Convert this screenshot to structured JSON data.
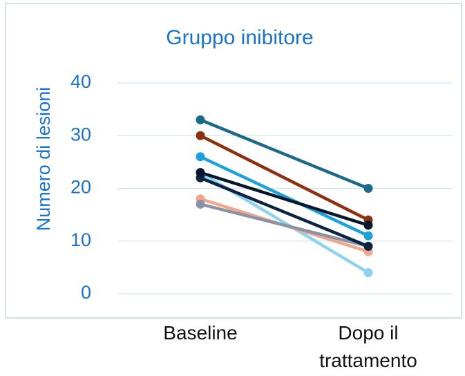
{
  "chart_data": {
    "type": "line",
    "title": "Gruppo inibitore",
    "y_label": "Numero di lesioni",
    "categories": [
      "Baseline",
      "Dopo il trattamento"
    ],
    "series": [
      {
        "color": "#1c6a87",
        "values": [
          33,
          20
        ]
      },
      {
        "color": "#8c300f",
        "values": [
          30,
          14
        ]
      },
      {
        "color": "#1ba1dc",
        "values": [
          26,
          11
        ]
      },
      {
        "color": "#8fd2ef",
        "values": [
          23,
          4
        ]
      },
      {
        "color": "#f2a68c",
        "values": [
          18,
          8
        ]
      },
      {
        "color": "#8a92a6",
        "values": [
          17,
          9
        ]
      },
      {
        "color": "#0d2342",
        "values": [
          22,
          9
        ]
      },
      {
        "color": "#07172c",
        "values": [
          23,
          13
        ]
      }
    ],
    "ylim": [
      0,
      40
    ],
    "yticks": [
      0,
      10,
      20,
      30,
      40
    ],
    "grid": true
  }
}
